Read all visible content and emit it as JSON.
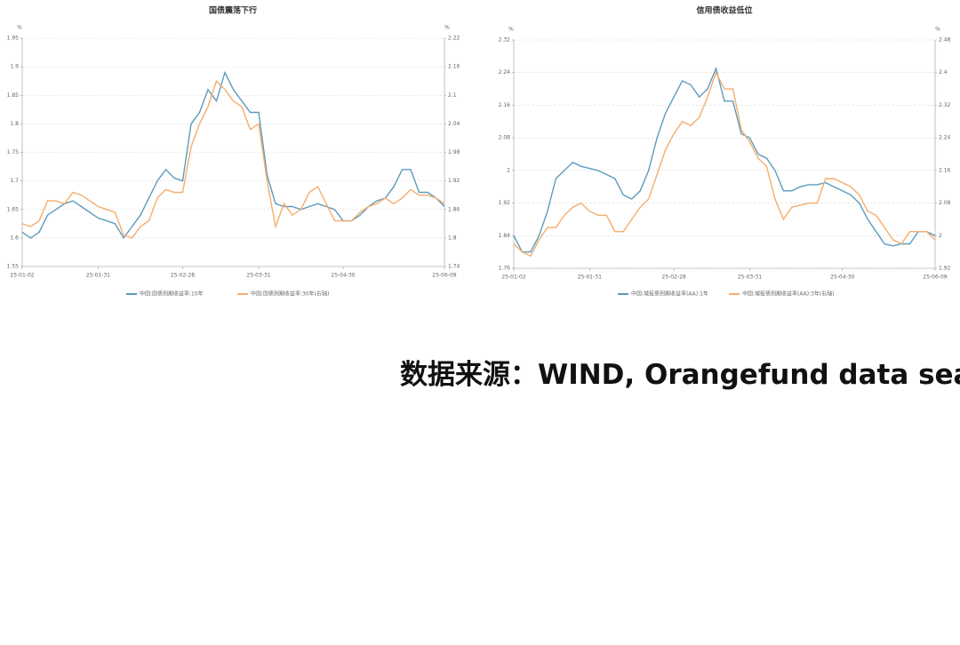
{
  "chart_data": [
    {
      "type": "line",
      "title": "国债震荡下行",
      "yunit": "%",
      "y2unit": "%",
      "categories": [
        "25-01-02",
        null,
        null,
        null,
        null,
        null,
        null,
        null,
        null,
        "25-01-31",
        null,
        null,
        null,
        null,
        null,
        null,
        null,
        null,
        null,
        "25-02-28",
        null,
        null,
        null,
        null,
        null,
        null,
        null,
        null,
        "25-03-31",
        null,
        null,
        null,
        null,
        null,
        null,
        null,
        null,
        null,
        "25-04-30",
        null,
        null,
        null,
        null,
        null,
        null,
        null,
        null,
        null,
        null,
        null,
        "25-06-09"
      ],
      "ylim": [
        1.55,
        1.95
      ],
      "yticks": [
        1.55,
        1.6,
        1.65,
        1.7,
        1.75,
        1.8,
        1.85,
        1.9,
        1.95
      ],
      "y2lim": [
        1.74,
        2.22
      ],
      "y2ticks": [
        1.74,
        1.8,
        1.86,
        1.92,
        1.98,
        2.04,
        2.1,
        2.16,
        2.22
      ],
      "grid": true,
      "series": [
        {
          "name": "中国:国债到期收益率:10年",
          "color": "#5b9bbd",
          "values": [
            1.61,
            1.6,
            1.61,
            1.64,
            1.65,
            1.66,
            1.665,
            1.655,
            1.645,
            1.635,
            1.63,
            1.625,
            1.6,
            1.62,
            1.64,
            1.67,
            1.7,
            1.72,
            1.705,
            1.7,
            1.8,
            1.82,
            1.86,
            1.84,
            1.89,
            1.86,
            1.84,
            1.82,
            1.82,
            1.71,
            1.66,
            1.655,
            1.655,
            1.65,
            1.655,
            1.66,
            1.655,
            1.65,
            1.63,
            1.63,
            1.64,
            1.655,
            1.665,
            1.67,
            1.69,
            1.72,
            1.72,
            1.68,
            1.68,
            1.67,
            1.655
          ]
        },
        {
          "name": "中国:国债到期收益率:30年(右轴)",
          "color": "#f5ad6b",
          "axis": "y2",
          "values": [
            1.83,
            1.824,
            1.836,
            1.878,
            1.878,
            1.872,
            1.896,
            1.89,
            1.878,
            1.866,
            1.86,
            1.854,
            1.806,
            1.8,
            1.824,
            1.836,
            1.884,
            1.902,
            1.896,
            1.896,
            1.992,
            2.04,
            2.076,
            2.13,
            2.112,
            2.088,
            2.076,
            2.028,
            2.04,
            1.92,
            1.824,
            1.872,
            1.848,
            1.86,
            1.896,
            1.908,
            1.872,
            1.836,
            1.836,
            1.836,
            1.854,
            1.866,
            1.872,
            1.884,
            1.872,
            1.884,
            1.902,
            1.89,
            1.89,
            1.884,
            1.872
          ]
        }
      ]
    },
    {
      "type": "line",
      "title": "信用债收益低位",
      "yunit": "%",
      "y2unit": "%",
      "categories": [
        "25-01-02",
        null,
        null,
        null,
        null,
        null,
        null,
        null,
        null,
        "25-01-31",
        null,
        null,
        null,
        null,
        null,
        null,
        null,
        null,
        null,
        "25-02-28",
        null,
        null,
        null,
        null,
        null,
        null,
        null,
        null,
        "25-03-31",
        null,
        null,
        null,
        null,
        null,
        null,
        null,
        null,
        null,
        null,
        "25-04-30",
        null,
        null,
        null,
        null,
        null,
        null,
        null,
        null,
        null,
        null,
        "25-06-09"
      ],
      "ylim": [
        1.76,
        2.32
      ],
      "yticks": [
        1.76,
        1.84,
        1.92,
        2,
        2.08,
        2.16,
        2.24,
        2.32
      ],
      "y2lim": [
        1.92,
        2.48
      ],
      "y2ticks": [
        1.92,
        2,
        2.08,
        2.16,
        2.24,
        2.32,
        2.4,
        2.48
      ],
      "grid": true,
      "series": [
        {
          "name": "中国:城投债到期收益率(AA):1年",
          "color": "#5b9bbd",
          "values": [
            1.84,
            1.8,
            1.8,
            1.84,
            1.9,
            1.98,
            2.0,
            2.02,
            2.01,
            2.005,
            2.0,
            1.99,
            1.98,
            1.94,
            1.93,
            1.95,
            2.0,
            2.08,
            2.14,
            2.18,
            2.22,
            2.21,
            2.18,
            2.2,
            2.25,
            2.17,
            2.17,
            2.09,
            2.08,
            2.04,
            2.03,
            2.0,
            1.95,
            1.95,
            1.96,
            1.965,
            1.965,
            1.97,
            1.96,
            1.95,
            1.94,
            1.92,
            1.88,
            1.85,
            1.82,
            1.815,
            1.82,
            1.82,
            1.85,
            1.85,
            1.84
          ]
        },
        {
          "name": "中国:城投债到期收益率(AA):3年(右轴)",
          "color": "#f5ad6b",
          "axis": "y2",
          "values": [
            1.98,
            1.96,
            1.95,
            1.99,
            2.02,
            2.02,
            2.05,
            2.07,
            2.08,
            2.06,
            2.05,
            2.05,
            2.01,
            2.01,
            2.04,
            2.07,
            2.09,
            2.15,
            2.21,
            2.25,
            2.28,
            2.27,
            2.29,
            2.34,
            2.4,
            2.36,
            2.36,
            2.26,
            2.23,
            2.19,
            2.17,
            2.09,
            2.04,
            2.07,
            2.075,
            2.08,
            2.08,
            2.14,
            2.14,
            2.13,
            2.12,
            2.1,
            2.06,
            2.05,
            2.02,
            1.99,
            1.98,
            2.01,
            2.01,
            2.01,
            1.99
          ]
        }
      ]
    }
  ],
  "source": "数据来源：WIND, Orangefund data sea"
}
